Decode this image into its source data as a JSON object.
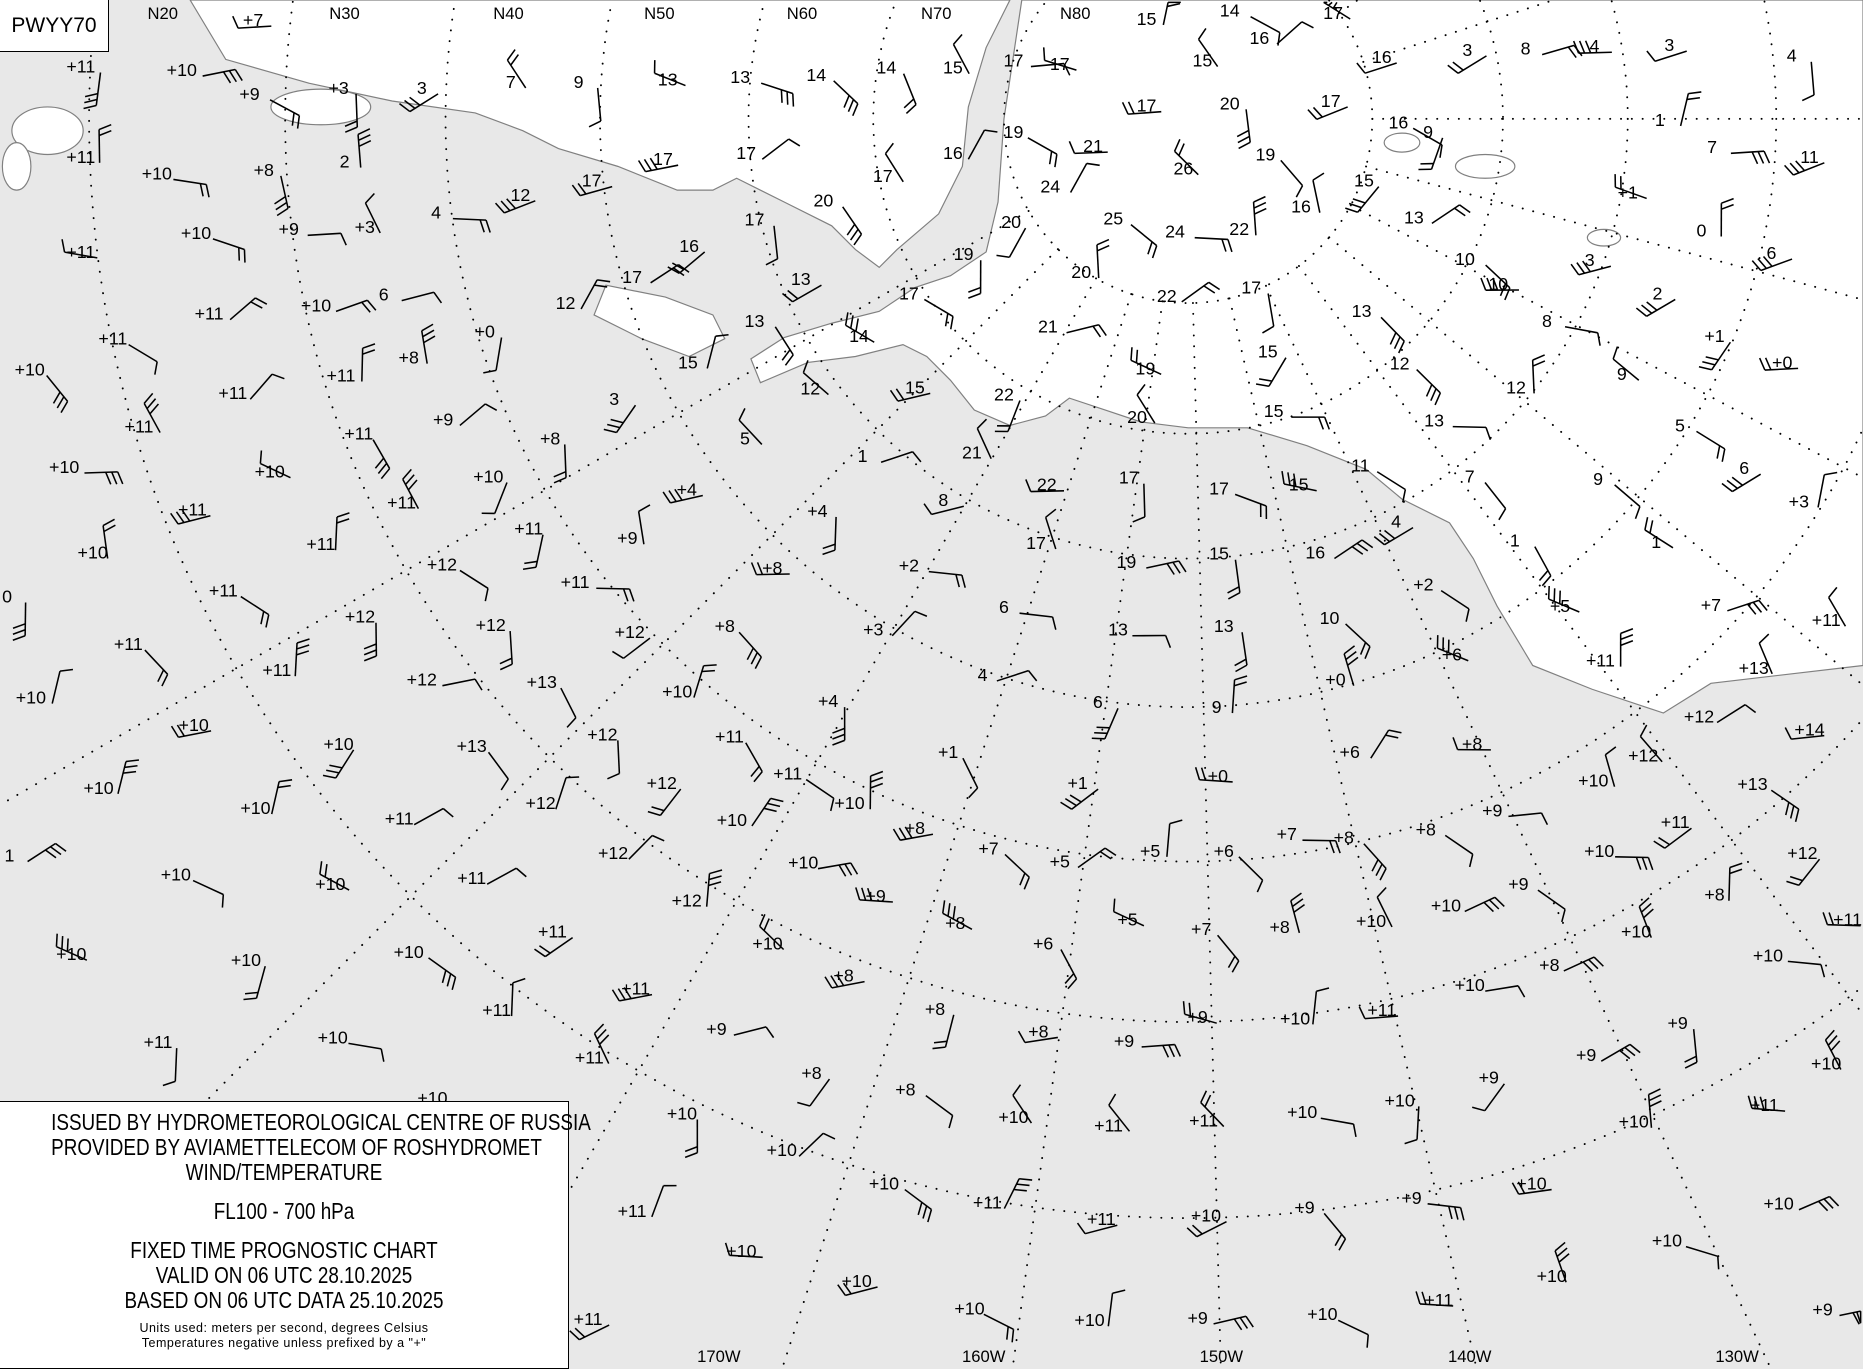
{
  "chart_code": "PWYY70",
  "legend": {
    "issuer": "ISSUED BY HYDROMETEOROLOGICAL CENTRE OF RUSSIA",
    "provider": "PROVIDED BY AVIAMETTELECOM OF ROSHYDROMET",
    "product": "WIND/TEMPERATURE",
    "level": "FL100 - 700 hPa",
    "chart_type": "FIXED TIME PROGNOSTIC CHART",
    "valid": "VALID ON 06 UTC 28.10.2025",
    "based": "BASED ON 06 UTC DATA 25.10.2025",
    "units": "Units used: meters per second, degrees Celsius",
    "sign_note": "Temperatures negative unless prefixed by a \"+\""
  },
  "colors": {
    "sea": "#e8e8e8",
    "land": "#ffffff",
    "coast": "#808080",
    "ink": "#000000"
  },
  "grid_labels": {
    "top": [
      "N20",
      "N30",
      "N40",
      "N50",
      "N60",
      "N70",
      "N80"
    ],
    "bottom": [
      "170W",
      "160W",
      "150W",
      "140W",
      "130W"
    ]
  },
  "stations": [
    "+7",
    "+3",
    "+9",
    "3",
    "7",
    "9",
    "13",
    "13",
    "14",
    "14",
    "15",
    "17",
    "17",
    "15",
    "14",
    "16",
    "17",
    "15",
    "16",
    "3",
    "8",
    "4",
    "3",
    "4",
    "+11",
    "+10",
    "+11",
    "+10",
    "+8",
    "2",
    "4",
    "12",
    "17",
    "17",
    "17",
    "20",
    "17",
    "16",
    "19",
    "24",
    "21",
    "17",
    "20",
    "19",
    "26",
    "25",
    "24",
    "22",
    "16",
    "15",
    "16",
    "9",
    "17",
    "13",
    "10",
    "10",
    "3",
    "2",
    "1",
    "7",
    "11",
    "+1",
    "0",
    "6",
    "+10",
    "+9",
    "+3",
    "+11",
    "6",
    "16",
    "17",
    "17",
    "12",
    "13",
    "17",
    "19",
    "20",
    "20",
    "22",
    "17",
    "13",
    "8",
    "+1",
    "+0",
    "+11",
    "+10",
    "+11",
    "+8",
    "+0",
    "13",
    "15",
    "14",
    "21",
    "15",
    "12",
    "12",
    "9",
    "+10",
    "+11",
    "+11",
    "+9",
    "+8",
    "3",
    "12",
    "15",
    "22",
    "19",
    "20",
    "15",
    "13",
    "5",
    "+11",
    "+11",
    "+10",
    "+10",
    "+10",
    "5",
    "1",
    "21",
    "17",
    "17",
    "15",
    "11",
    "7",
    "9",
    "6",
    "+11",
    "+11",
    "+4",
    "+4",
    "8",
    "22",
    "+3",
    "+10",
    "+11",
    "+11",
    "+9",
    "+8",
    "+2",
    "17",
    "19",
    "15",
    "16",
    "4",
    "1",
    "1",
    "+11",
    "+12",
    "+11",
    "+12",
    "+12",
    "+12",
    "+8",
    "+3",
    "6",
    "13",
    "13",
    "10",
    "+2",
    "+5",
    "+7",
    "+11",
    "+11",
    "+11",
    "+12",
    "+13",
    "+10",
    "+4",
    "4",
    "6",
    "9",
    "+0",
    "+6",
    "+11",
    "+13",
    "+10",
    "+10",
    "+13",
    "+12",
    "+11",
    "+10",
    "+1",
    "+11",
    "+0",
    "+6",
    "+8",
    "+12",
    "+14",
    "+12",
    "+10",
    "+12",
    "+10",
    "+1",
    "+10",
    "+13",
    "+9",
    "+10",
    "+11",
    "+12",
    "+10",
    "+8",
    "+8",
    "+8",
    "+7",
    "+7",
    "+5",
    "+5",
    "+6",
    "+11",
    "+10",
    "+12",
    "+12",
    "+10",
    "+10",
    "+10",
    "+11",
    "+9",
    "+12",
    "+9",
    "+10",
    "+10",
    "+8",
    "+8",
    "+5",
    "+7",
    "+8",
    "+10",
    "+11",
    "+10",
    "+10",
    "+10",
    "+11",
    "+10",
    "+6",
    "+8",
    "+8",
    "+10",
    "+10",
    "+11",
    "+11",
    "+8",
    "+11",
    "+10",
    "+9",
    "+9",
    "+11",
    "+10",
    "+9",
    "+8",
    "+9",
    "+9",
    "+10",
    "+11",
    "+8",
    "+8",
    "+9",
    "+11",
    "+10",
    "+10",
    "+10",
    "+11",
    "+11",
    "+10",
    "+10",
    "+10",
    "+10",
    "+10",
    "+11",
    "+11",
    "+10",
    "+9",
    "+9",
    "+10",
    "+10",
    "+11",
    "+10",
    "+10",
    "+10",
    "+10",
    "+9",
    "+10",
    "+11",
    "+10",
    "+10",
    "+9",
    "1",
    "0",
    "+11"
  ]
}
